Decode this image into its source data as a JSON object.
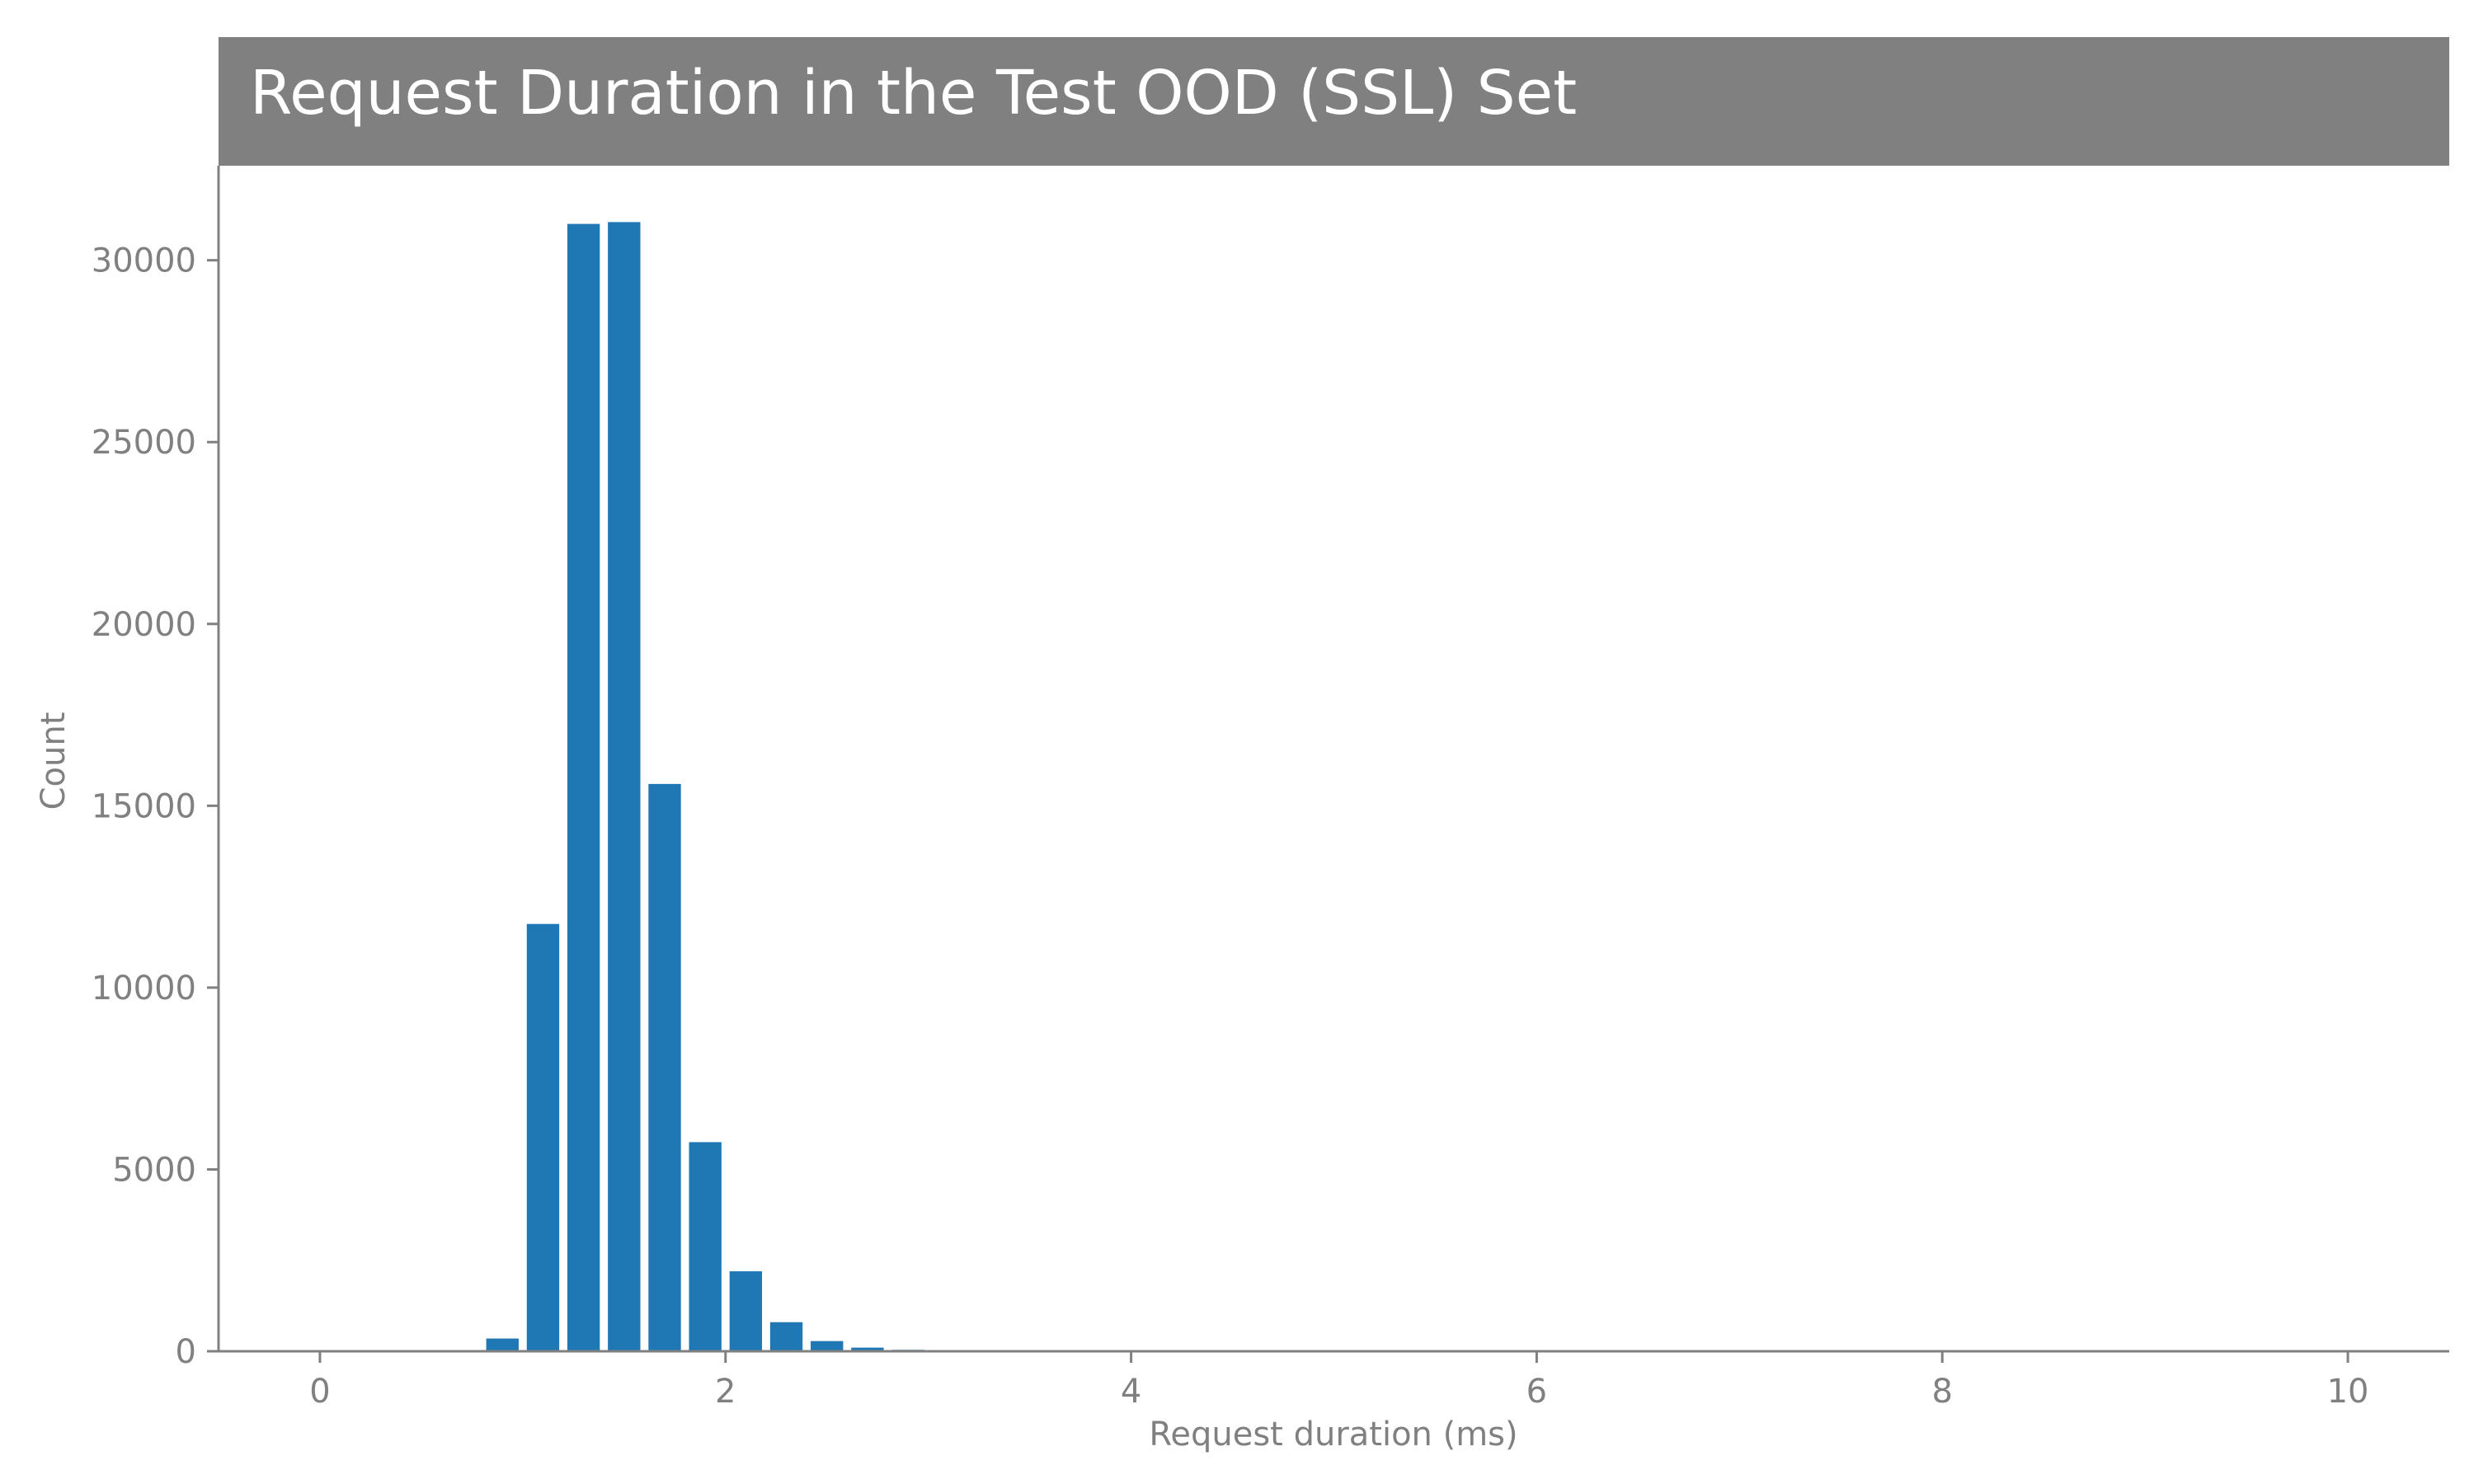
{
  "title": "Request Duration in the Test OOD (SSL) Set",
  "colors": {
    "bar": "#1f77b4",
    "title_bg": "#808080",
    "title_text": "#ffffff",
    "axis": "#808080",
    "tick_text": "#808080"
  },
  "chart_data": {
    "type": "bar",
    "title": "Request Duration in the Test OOD (SSL) Set",
    "xlabel": "Request duration (ms)",
    "ylabel": "Count",
    "xlim": [
      -0.5,
      10.5
    ],
    "ylim": [
      0,
      32600
    ],
    "bin_width": 0.2,
    "x_ticks": [
      0,
      2,
      4,
      6,
      8,
      10
    ],
    "y_ticks": [
      0,
      5000,
      10000,
      15000,
      20000,
      25000,
      30000
    ],
    "grid": false,
    "bins": [
      {
        "x": 0.9,
        "value": 350
      },
      {
        "x": 1.1,
        "value": 11750
      },
      {
        "x": 1.3,
        "value": 31000
      },
      {
        "x": 1.5,
        "value": 31050
      },
      {
        "x": 1.7,
        "value": 15600
      },
      {
        "x": 1.9,
        "value": 5750
      },
      {
        "x": 2.1,
        "value": 2200
      },
      {
        "x": 2.3,
        "value": 800
      },
      {
        "x": 2.5,
        "value": 280
      },
      {
        "x": 2.7,
        "value": 100
      },
      {
        "x": 2.9,
        "value": 40
      },
      {
        "x": 3.1,
        "value": 15
      }
    ]
  }
}
